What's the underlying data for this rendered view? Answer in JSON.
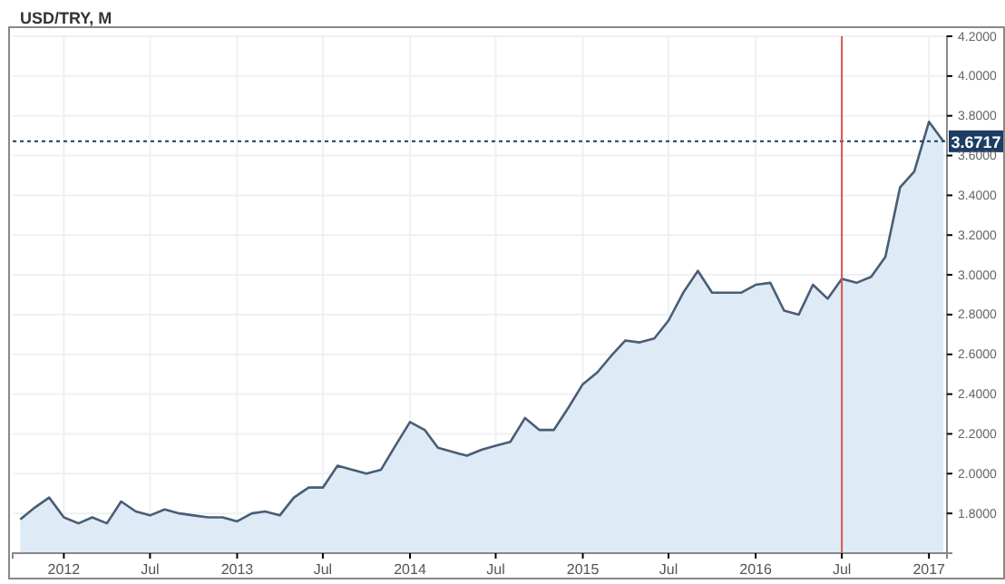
{
  "chart_data": {
    "type": "area",
    "title": "USD/TRY, M",
    "x": [
      "2011-10",
      "2011-11",
      "2011-12",
      "2012-01",
      "2012-02",
      "2012-03",
      "2012-04",
      "2012-05",
      "2012-06",
      "2012-07",
      "2012-08",
      "2012-09",
      "2012-10",
      "2012-11",
      "2012-12",
      "2013-01",
      "2013-02",
      "2013-03",
      "2013-04",
      "2013-05",
      "2013-06",
      "2013-07",
      "2013-08",
      "2013-09",
      "2013-10",
      "2013-11",
      "2013-12",
      "2014-01",
      "2014-02",
      "2014-03",
      "2014-04",
      "2014-05",
      "2014-06",
      "2014-07",
      "2014-08",
      "2014-09",
      "2014-10",
      "2014-11",
      "2014-12",
      "2015-01",
      "2015-02",
      "2015-03",
      "2015-04",
      "2015-05",
      "2015-06",
      "2015-07",
      "2015-08",
      "2015-09",
      "2015-10",
      "2015-11",
      "2015-12",
      "2016-01",
      "2016-02",
      "2016-03",
      "2016-04",
      "2016-05",
      "2016-06",
      "2016-07",
      "2016-08",
      "2016-09",
      "2016-10",
      "2016-11",
      "2016-12",
      "2017-01",
      "2017-02"
    ],
    "series": [
      {
        "color": "#4a5d75",
        "values": [
          1.77,
          1.83,
          1.88,
          1.78,
          1.75,
          1.78,
          1.75,
          1.86,
          1.81,
          1.79,
          1.82,
          1.8,
          1.79,
          1.78,
          1.78,
          1.76,
          1.8,
          1.81,
          1.79,
          1.88,
          1.93,
          1.93,
          2.04,
          2.02,
          2.0,
          2.02,
          2.14,
          2.26,
          2.22,
          2.13,
          2.11,
          2.09,
          2.12,
          2.14,
          2.16,
          2.28,
          2.22,
          2.22,
          2.33,
          2.45,
          2.51,
          2.59,
          2.67,
          2.66,
          2.68,
          2.77,
          2.91,
          3.02,
          2.91,
          2.91,
          2.91,
          2.95,
          2.96,
          2.82,
          2.8,
          2.95,
          2.88,
          2.98,
          2.96,
          2.99,
          3.09,
          3.44,
          3.52,
          3.77,
          3.67
        ]
      }
    ],
    "xlim": [
      "2011-09-15",
      "2017-02-08"
    ],
    "xticks": [
      {
        "value": "2012-01",
        "label": "2012"
      },
      {
        "value": "2012-07",
        "label": "Jul"
      },
      {
        "value": "2013-01",
        "label": "2013"
      },
      {
        "value": "2013-07",
        "label": "Jul"
      },
      {
        "value": "2014-01",
        "label": "2014"
      },
      {
        "value": "2014-07",
        "label": "Jul"
      },
      {
        "value": "2015-01",
        "label": "2015"
      },
      {
        "value": "2015-07",
        "label": "Jul"
      },
      {
        "value": "2016-01",
        "label": "2016"
      },
      {
        "value": "2016-07",
        "label": "Jul"
      },
      {
        "value": "2017-01",
        "label": "2017"
      }
    ],
    "ylim": [
      1.6,
      4.2
    ],
    "yticks": [
      {
        "value": 1.8,
        "label": "1.8000"
      },
      {
        "value": 2.0,
        "label": "2.0000"
      },
      {
        "value": 2.2,
        "label": "2.2000"
      },
      {
        "value": 2.4,
        "label": "2.4000"
      },
      {
        "value": 2.6,
        "label": "2.6000"
      },
      {
        "value": 2.8,
        "label": "2.8000"
      },
      {
        "value": 3.0,
        "label": "3.0000"
      },
      {
        "value": 3.2,
        "label": "3.2000"
      },
      {
        "value": 3.4,
        "label": "3.4000"
      },
      {
        "value": 3.6,
        "label": "3.6000"
      },
      {
        "value": 3.8,
        "label": "3.8000"
      },
      {
        "value": 4.0,
        "label": "4.0000"
      },
      {
        "value": 4.2,
        "label": "4.2000"
      }
    ],
    "grid": true,
    "ref_lines": [
      {
        "axis": "y",
        "value": 3.6717,
        "label": "3.6717",
        "color": "#1d3d63",
        "line_style": "dotted"
      },
      {
        "axis": "x",
        "value": "2016-07",
        "color": "#d9534f",
        "line_style": "solid"
      }
    ]
  }
}
